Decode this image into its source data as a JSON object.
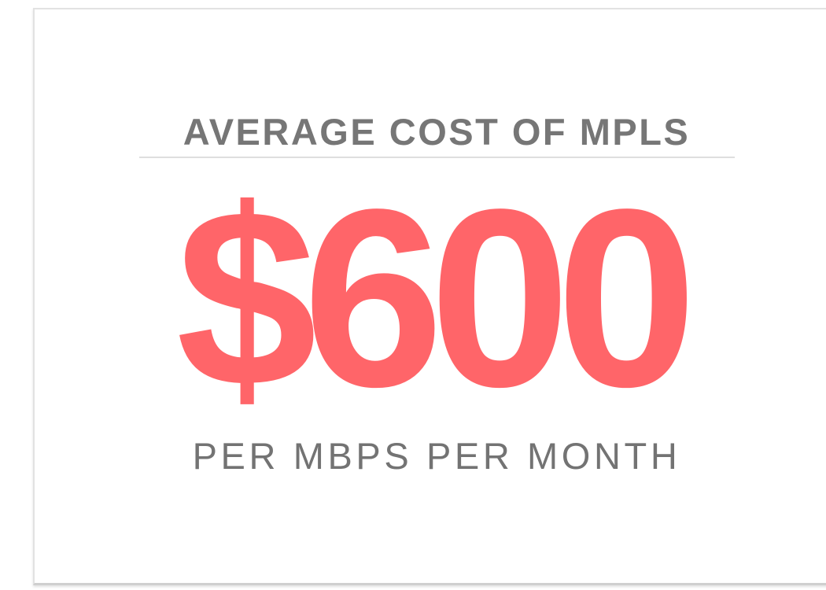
{
  "card": {
    "title": "AVERAGE COST OF MPLS",
    "value": "$600",
    "caption": "PER MBPS PER MONTH"
  }
}
